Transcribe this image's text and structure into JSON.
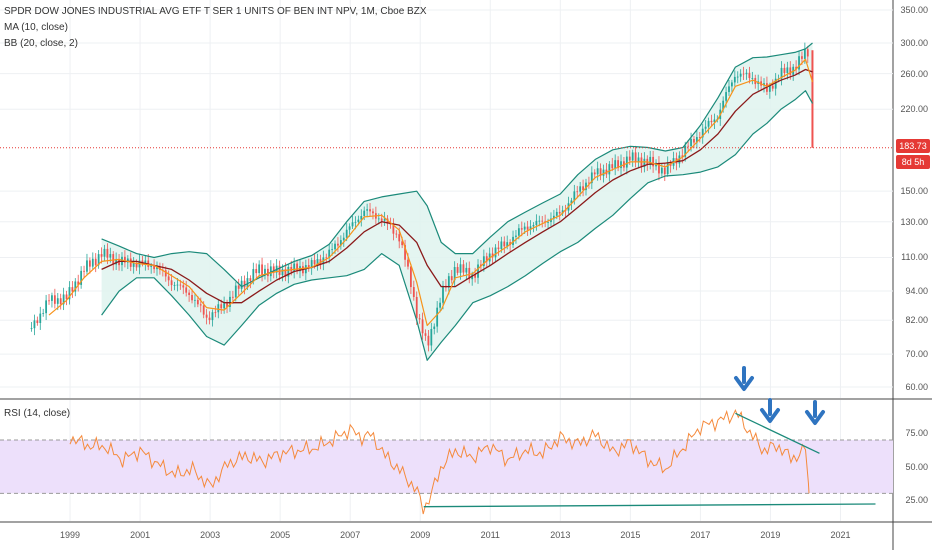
{
  "legend": {
    "title": "SPDR DOW JONES INDUSTRIAL AVG ETF T SER 1 UNITS OF BEN INT NPV, 1M, Cboe BZX",
    "ma": "MA (10, close)",
    "bb": "BB (20, close, 2)",
    "rsi": "RSI (14, close)"
  },
  "price_axis": {
    "ticks": [
      "350.00",
      "300.00",
      "260.00",
      "220.00",
      "183.73",
      "150.00",
      "130.00",
      "110.00",
      "94.00",
      "82.00",
      "70.00",
      "60.00"
    ],
    "last_price_label": "183.73",
    "countdown_label": "8d 5h"
  },
  "rsi_axis": {
    "ticks": [
      "75.00",
      "50.00",
      "25.00"
    ]
  },
  "x_axis": {
    "ticks": [
      "1999",
      "2001",
      "2003",
      "2005",
      "2007",
      "2009",
      "2011",
      "2013",
      "2015",
      "2017",
      "2019",
      "2021"
    ]
  },
  "colors": {
    "ma": "#f7931a",
    "bb": "#1b8a7a",
    "bb_basis": "#8b1a1a",
    "bb_fill": "#dff3ef",
    "rsi": "#f58a3c",
    "rsi_band": "#ede0fb",
    "up_candle": "#26a69a",
    "down_candle": "#ef5350",
    "arrow": "#2f74c0",
    "last_price": "#e53935"
  },
  "annotations": {
    "arrows": 3,
    "arrow_icon": "down-arrow-icon"
  },
  "chart_data": [
    {
      "type": "candlestick",
      "title": "SPDR DOW JONES INDUSTRIAL AVG ETF T SER 1 UNITS OF BEN INT NPV, 1M, Cboe BZX",
      "y_scale": "log",
      "ylim": [
        57,
        360
      ],
      "xlim": [
        1997.0,
        2022.5
      ],
      "last_price": 183.73,
      "series": [
        {
          "name": "Price",
          "x": [
            1997.9,
            1998.4,
            1998.9,
            1999.4,
            1999.9,
            2000.4,
            2000.9,
            2001.4,
            2001.9,
            2002.4,
            2002.9,
            2003.4,
            2003.9,
            2004.4,
            2004.9,
            2005.4,
            2005.9,
            2006.4,
            2006.9,
            2007.4,
            2007.9,
            2008.4,
            2008.9,
            2009.2,
            2009.6,
            2010.0,
            2010.5,
            2011.0,
            2011.5,
            2012.0,
            2012.5,
            2013.0,
            2013.5,
            2014.0,
            2014.5,
            2015.0,
            2015.5,
            2016.0,
            2016.5,
            2017.0,
            2017.5,
            2018.0,
            2018.5,
            2018.9,
            2019.3,
            2019.7,
            2020.0,
            2020.1,
            2020.2
          ],
          "y": [
            79,
            90,
            91,
            104,
            112,
            108,
            107,
            106,
            98,
            93,
            83,
            88,
            97,
            104,
            103,
            104,
            106,
            112,
            124,
            137,
            132,
            121,
            85,
            72,
            92,
            105,
            101,
            112,
            118,
            127,
            130,
            135,
            150,
            163,
            168,
            175,
            172,
            165,
            180,
            197,
            214,
            260,
            255,
            240,
            260,
            268,
            286,
            290,
            184
          ]
        },
        {
          "name": "MA (10, close)",
          "x": [
            1998.4,
            1998.9,
            1999.4,
            1999.9,
            2000.4,
            2000.9,
            2001.4,
            2001.9,
            2002.4,
            2002.9,
            2003.4,
            2003.9,
            2004.4,
            2004.9,
            2005.4,
            2005.9,
            2006.4,
            2006.9,
            2007.4,
            2007.9,
            2008.4,
            2008.9,
            2009.2,
            2009.6,
            2010.0,
            2010.5,
            2011.0,
            2011.5,
            2012.0,
            2012.5,
            2013.0,
            2013.5,
            2014.0,
            2014.5,
            2015.0,
            2015.5,
            2016.0,
            2016.5,
            2017.0,
            2017.5,
            2018.0,
            2018.5,
            2018.9,
            2019.3,
            2019.7,
            2020.0,
            2020.2
          ],
          "y": [
            84,
            90,
            100,
            108,
            109,
            107,
            106,
            101,
            96,
            87,
            86,
            93,
            101,
            103,
            104,
            105,
            110,
            120,
            133,
            134,
            125,
            98,
            80,
            86,
            100,
            102,
            110,
            116,
            124,
            129,
            134,
            146,
            160,
            166,
            172,
            172,
            168,
            176,
            192,
            210,
            245,
            252,
            245,
            255,
            264,
            278,
            250
          ]
        },
        {
          "name": "BB basis (20, close)",
          "x": [
            1999.9,
            2000.4,
            2000.9,
            2001.4,
            2001.9,
            2002.4,
            2002.9,
            2003.4,
            2003.9,
            2004.4,
            2004.9,
            2005.4,
            2005.9,
            2006.4,
            2006.9,
            2007.4,
            2007.9,
            2008.4,
            2008.9,
            2009.2,
            2009.6,
            2010.0,
            2010.5,
            2011.0,
            2011.5,
            2012.0,
            2012.5,
            2013.0,
            2013.5,
            2014.0,
            2014.5,
            2015.0,
            2015.5,
            2016.0,
            2016.5,
            2017.0,
            2017.5,
            2018.0,
            2018.5,
            2018.9,
            2019.3,
            2019.7,
            2020.0,
            2020.2
          ],
          "y": [
            104,
            108,
            108,
            106,
            104,
            99,
            93,
            89,
            89,
            94,
            99,
            103,
            105,
            108,
            115,
            124,
            130,
            128,
            118,
            106,
            96,
            96,
            101,
            106,
            112,
            118,
            124,
            130,
            139,
            149,
            158,
            165,
            170,
            171,
            173,
            182,
            196,
            218,
            236,
            244,
            252,
            258,
            265,
            262
          ]
        },
        {
          "name": "BB upper",
          "x": [
            1999.9,
            2000.4,
            2000.9,
            2001.4,
            2001.9,
            2002.4,
            2002.9,
            2003.4,
            2003.9,
            2004.4,
            2004.9,
            2005.4,
            2005.9,
            2006.4,
            2006.9,
            2007.4,
            2007.9,
            2008.4,
            2008.9,
            2009.2,
            2009.6,
            2010.0,
            2010.5,
            2011.0,
            2011.5,
            2012.0,
            2012.5,
            2013.0,
            2013.5,
            2014.0,
            2014.5,
            2015.0,
            2015.5,
            2016.0,
            2016.5,
            2017.0,
            2017.5,
            2018.0,
            2018.5,
            2018.9,
            2019.3,
            2019.7,
            2020.0,
            2020.2
          ],
          "y": [
            120,
            116,
            112,
            110,
            112,
            113,
            112,
            104,
            96,
            100,
            104,
            108,
            111,
            117,
            130,
            143,
            146,
            148,
            150,
            140,
            118,
            112,
            112,
            121,
            130,
            136,
            142,
            148,
            162,
            174,
            182,
            185,
            184,
            181,
            184,
            204,
            232,
            268,
            280,
            281,
            284,
            287,
            292,
            300
          ]
        },
        {
          "name": "BB lower",
          "x": [
            1999.9,
            2000.4,
            2000.9,
            2001.4,
            2001.9,
            2002.4,
            2002.9,
            2003.4,
            2003.9,
            2004.4,
            2004.9,
            2005.4,
            2005.9,
            2006.4,
            2006.9,
            2007.4,
            2007.9,
            2008.4,
            2008.9,
            2009.2,
            2009.6,
            2010.0,
            2010.5,
            2011.0,
            2011.5,
            2012.0,
            2012.5,
            2013.0,
            2013.5,
            2014.0,
            2014.5,
            2015.0,
            2015.5,
            2016.0,
            2016.5,
            2017.0,
            2017.5,
            2018.0,
            2018.5,
            2018.9,
            2019.3,
            2019.7,
            2020.0,
            2020.2
          ],
          "y": [
            84,
            94,
            100,
            100,
            92,
            84,
            76,
            73,
            80,
            88,
            93,
            97,
            99,
            100,
            101,
            104,
            112,
            106,
            82,
            68,
            74,
            80,
            89,
            92,
            96,
            101,
            107,
            113,
            118,
            126,
            134,
            145,
            156,
            161,
            162,
            164,
            168,
            178,
            196,
            206,
            220,
            230,
            240,
            226
          ]
        }
      ]
    },
    {
      "type": "line",
      "title": "RSI (14, close)",
      "ylim": [
        10,
        100
      ],
      "y_ticks": [
        75,
        50,
        25
      ],
      "band": [
        30,
        70
      ],
      "xlim": [
        1997.0,
        2022.5
      ],
      "series": [
        {
          "name": "RSI (14, close)",
          "x": [
            1999.0,
            1999.5,
            2000.0,
            2000.5,
            2001.0,
            2001.5,
            2002.0,
            2002.5,
            2003.0,
            2003.5,
            2004.0,
            2004.5,
            2005.0,
            2005.5,
            2006.0,
            2006.5,
            2007.0,
            2007.3,
            2007.6,
            2008.0,
            2008.5,
            2008.9,
            2009.1,
            2009.3,
            2009.6,
            2010.0,
            2010.5,
            2011.0,
            2011.5,
            2012.0,
            2012.5,
            2013.0,
            2013.5,
            2014.0,
            2014.5,
            2015.0,
            2015.5,
            2016.0,
            2016.5,
            2017.0,
            2017.5,
            2018.0,
            2018.1,
            2018.4,
            2018.8,
            2019.2,
            2019.6,
            2019.9,
            2020.0,
            2020.1
          ],
          "y": [
            72,
            66,
            65,
            55,
            62,
            52,
            44,
            48,
            35,
            52,
            58,
            54,
            60,
            62,
            64,
            70,
            78,
            72,
            74,
            58,
            45,
            32,
            18,
            28,
            50,
            62,
            57,
            66,
            55,
            62,
            60,
            72,
            67,
            74,
            61,
            68,
            55,
            48,
            64,
            80,
            84,
            90,
            88,
            76,
            62,
            66,
            56,
            60,
            65,
            30
          ]
        }
      ],
      "annotations": [
        {
          "type": "trendline",
          "points": [
            [
              2018.0,
              90
            ],
            [
              2020.4,
              60
            ]
          ]
        },
        {
          "type": "trendline",
          "points": [
            [
              2009.1,
              20
            ],
            [
              2022.0,
              22
            ]
          ]
        }
      ]
    }
  ]
}
